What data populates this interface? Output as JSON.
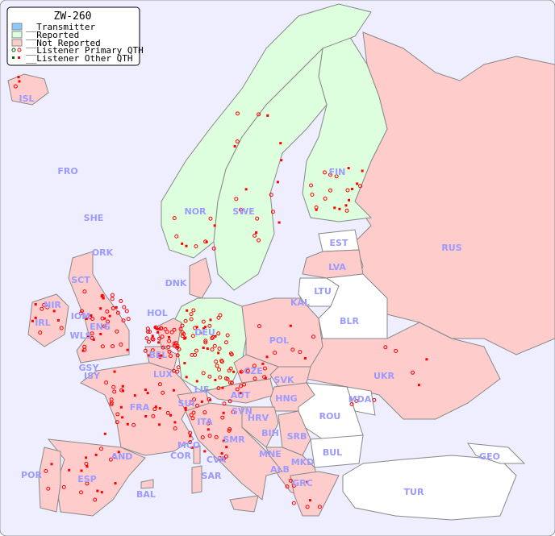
{
  "title": "ZW-260",
  "legend": [
    {
      "label": "__Transmitter",
      "color": "#88ccff"
    },
    {
      "label": "__Reported",
      "color": "#ddffdd"
    },
    {
      "label": "__Not Reported",
      "color": "#ffcccc"
    },
    {
      "label": "__Listener Primary QTH",
      "color": "#ff0000",
      "alt_color": "#006600"
    },
    {
      "label": "__Listener Other QTH",
      "color": "#ff0000",
      "alt_color": "#006600"
    }
  ],
  "colors": {
    "sea": "#eeeeff",
    "reported": "#ddffdd",
    "not_reported": "#ffcccc",
    "no_data": "#ffffff",
    "label": "#9a9aff",
    "marker": "#ff0000"
  },
  "countries": [
    {
      "code": "ISL",
      "status": "not_reported"
    },
    {
      "code": "FRO",
      "status": "none"
    },
    {
      "code": "SHE",
      "status": "none"
    },
    {
      "code": "ORK",
      "status": "none"
    },
    {
      "code": "NOR",
      "status": "reported"
    },
    {
      "code": "SWE",
      "status": "reported"
    },
    {
      "code": "FIN",
      "status": "reported"
    },
    {
      "code": "EST",
      "status": "none"
    },
    {
      "code": "LVA",
      "status": "not_reported"
    },
    {
      "code": "RUS",
      "status": "not_reported"
    },
    {
      "code": "LTU",
      "status": "none"
    },
    {
      "code": "KAL",
      "status": "none"
    },
    {
      "code": "BLR",
      "status": "none"
    },
    {
      "code": "DNK",
      "status": "not_reported"
    },
    {
      "code": "HOL",
      "status": "not_reported"
    },
    {
      "code": "SCT",
      "status": "not_reported"
    },
    {
      "code": "NIR",
      "status": "not_reported"
    },
    {
      "code": "IOM",
      "status": "not_reported"
    },
    {
      "code": "ENG",
      "status": "not_reported"
    },
    {
      "code": "IRL",
      "status": "not_reported"
    },
    {
      "code": "WLS",
      "status": "not_reported"
    },
    {
      "code": "GSY",
      "status": "none"
    },
    {
      "code": "JSY",
      "status": "none"
    },
    {
      "code": "BEL",
      "status": "not_reported"
    },
    {
      "code": "LUX",
      "status": "not_reported"
    },
    {
      "code": "DEU",
      "status": "reported"
    },
    {
      "code": "POL",
      "status": "not_reported"
    },
    {
      "code": "CZE",
      "status": "not_reported"
    },
    {
      "code": "SVK",
      "status": "not_reported"
    },
    {
      "code": "UKR",
      "status": "not_reported"
    },
    {
      "code": "MDA",
      "status": "none"
    },
    {
      "code": "FRA",
      "status": "not_reported"
    },
    {
      "code": "SUI",
      "status": "not_reported"
    },
    {
      "code": "LIE",
      "status": "not_reported"
    },
    {
      "code": "AUT",
      "status": "not_reported"
    },
    {
      "code": "HNG",
      "status": "not_reported"
    },
    {
      "code": "SVN",
      "status": "not_reported"
    },
    {
      "code": "HRV",
      "status": "not_reported"
    },
    {
      "code": "ROU",
      "status": "none"
    },
    {
      "code": "ITA",
      "status": "not_reported"
    },
    {
      "code": "SRB",
      "status": "not_reported"
    },
    {
      "code": "BIH",
      "status": "not_reported"
    },
    {
      "code": "MCO",
      "status": "not_reported"
    },
    {
      "code": "SMR",
      "status": "not_reported"
    },
    {
      "code": "COR",
      "status": "not_reported"
    },
    {
      "code": "CVA",
      "status": "not_reported"
    },
    {
      "code": "MNE",
      "status": "not_reported"
    },
    {
      "code": "BUL",
      "status": "none"
    },
    {
      "code": "ALB",
      "status": "not_reported"
    },
    {
      "code": "MKD",
      "status": "not_reported"
    },
    {
      "code": "GEO",
      "status": "none"
    },
    {
      "code": "AND",
      "status": "not_reported"
    },
    {
      "code": "POR",
      "status": "not_reported"
    },
    {
      "code": "ESP",
      "status": "not_reported"
    },
    {
      "code": "SAR",
      "status": "not_reported"
    },
    {
      "code": "BAL",
      "status": "not_reported"
    },
    {
      "code": "GRC",
      "status": "not_reported"
    },
    {
      "code": "TUR",
      "status": "none"
    }
  ]
}
